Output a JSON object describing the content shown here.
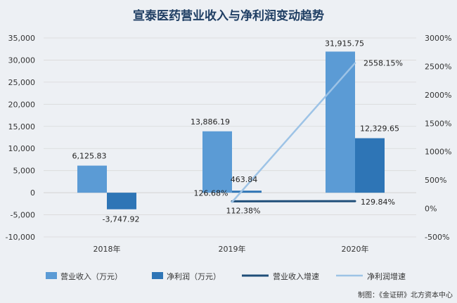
{
  "title": "宣泰医药营业收入与净利润变动趋势",
  "credit": "制图：《金证研》北方资本中心",
  "colors": {
    "background": "#edf0f4",
    "title": "#1f3e63",
    "revenue_bar": "#5b9bd5",
    "profit_bar": "#2e75b6",
    "revenue_growth_line": "#1f4e79",
    "profit_growth_line": "#9dc3e6",
    "grid": "#d9d9d9"
  },
  "chart_data": {
    "type": "bar",
    "title": "宣泰医药营业收入与净利润变动趋势",
    "categories": [
      "2018年",
      "2019年",
      "2020年"
    ],
    "y_left": {
      "range": [
        -10000,
        35000
      ],
      "ticks": [
        "-10,000",
        "-5,000",
        "0",
        "5,000",
        "10,000",
        "15,000",
        "20,000",
        "25,000",
        "30,000",
        "35,000"
      ]
    },
    "y_right": {
      "range": [
        -500,
        3000
      ],
      "ticks": [
        "-500%",
        "0%",
        "500%",
        "1000%",
        "1500%",
        "2000%",
        "2500%",
        "3000%"
      ]
    },
    "grid": true,
    "legend_position": "bottom",
    "series": [
      {
        "name": "营业收入（万元）",
        "kind": "bar",
        "axis": "left",
        "values": [
          6125.83,
          13886.19,
          31915.75
        ],
        "labels": [
          "6,125.83",
          "13,886.19",
          "31,915.75"
        ]
      },
      {
        "name": "净利润（万元）",
        "kind": "bar",
        "axis": "left",
        "values": [
          -3747.92,
          463.84,
          12329.65
        ],
        "labels": [
          "-3,747.92",
          "463.84",
          "12,329.65"
        ]
      },
      {
        "name": "营业收入增速",
        "kind": "line",
        "axis": "right",
        "x": [
          "2019年",
          "2020年"
        ],
        "values": [
          126.68,
          129.84
        ],
        "labels": [
          "126.68%",
          "129.84%"
        ]
      },
      {
        "name": "净利润增速",
        "kind": "line",
        "axis": "right",
        "x": [
          "2019年",
          "2020年"
        ],
        "values": [
          112.38,
          2558.15
        ],
        "labels": [
          "112.38%",
          "2558.15%"
        ]
      }
    ]
  }
}
